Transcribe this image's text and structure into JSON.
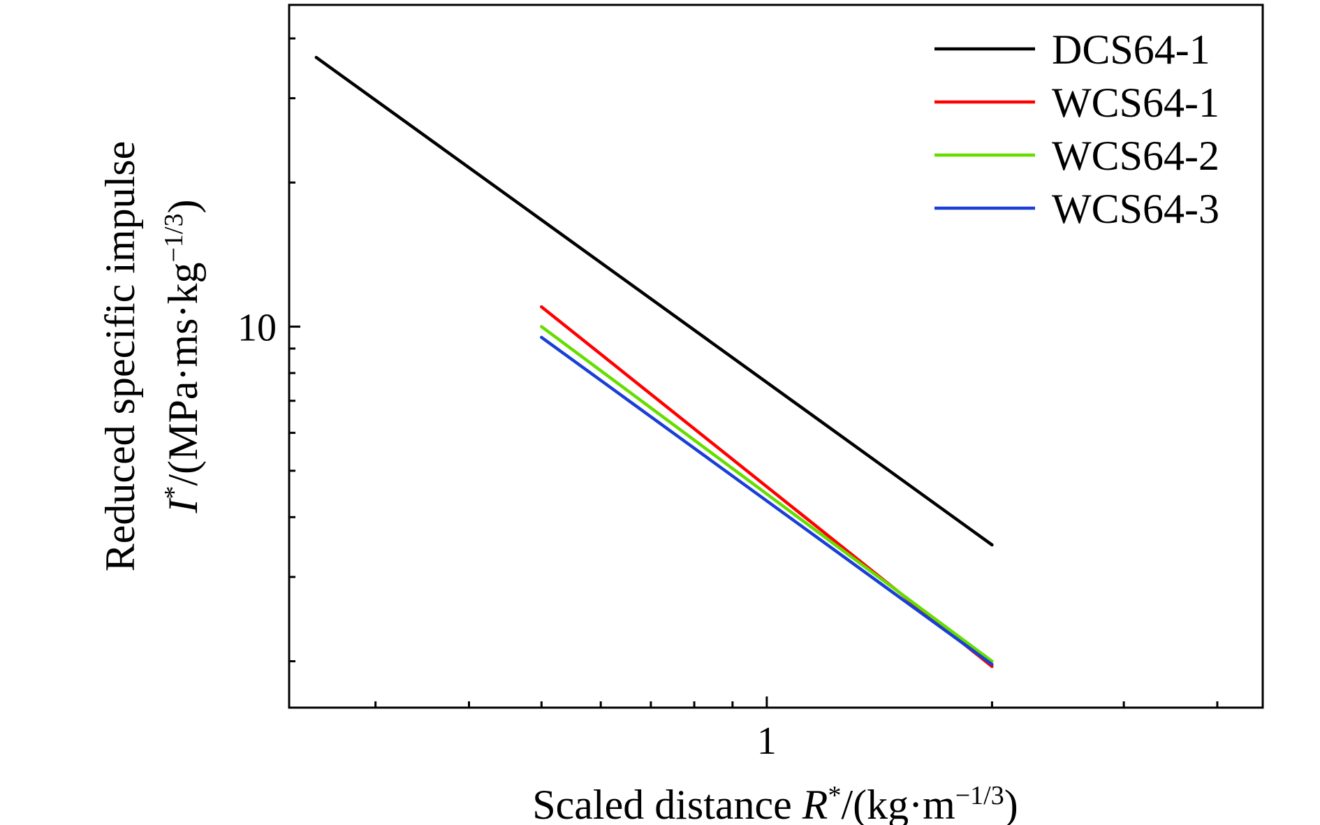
{
  "chart_data": {
    "type": "line",
    "xscale": "log",
    "yscale": "log",
    "xlim": [
      0.23,
      4.6
    ],
    "ylim": [
      1.6,
      47
    ],
    "x_tick_labels": [
      {
        "value": 1,
        "label": "1"
      }
    ],
    "y_tick_labels": [
      {
        "value": 10,
        "label": "10"
      }
    ],
    "x_minor_ticks": [
      0.3,
      0.4,
      0.5,
      0.6,
      0.7,
      0.8,
      0.9,
      2,
      3,
      4
    ],
    "y_minor_ticks": [
      2,
      3,
      4,
      5,
      6,
      7,
      8,
      9,
      20,
      30,
      40
    ],
    "xlabel": {
      "prefix": "Scaled distance ",
      "symbol": "R",
      "sup1": "*",
      "unit": "/(kg·m",
      "exp": "−1/3",
      "close": ")"
    },
    "ylabel": {
      "line1": "Reduced specific impulse",
      "symbol": "I",
      "sup1": "*",
      "unit": "/(MPa·ms·kg",
      "exp": "−1/3",
      "close": ")"
    },
    "grid": false,
    "legend_position": "top-right",
    "series": [
      {
        "name": "DCS64-1",
        "color": "#000000",
        "x": [
          0.25,
          2.0
        ],
        "y": [
          36.5,
          3.5
        ]
      },
      {
        "name": "WCS64-1",
        "color": "#ff0000",
        "x": [
          0.5,
          2.0
        ],
        "y": [
          11.0,
          1.95
        ]
      },
      {
        "name": "WCS64-2",
        "color": "#66dd00",
        "x": [
          0.5,
          2.0
        ],
        "y": [
          10.0,
          2.0
        ]
      },
      {
        "name": "WCS64-3",
        "color": "#1a3fd6",
        "x": [
          0.5,
          2.0
        ],
        "y": [
          9.5,
          1.97
        ]
      }
    ]
  }
}
